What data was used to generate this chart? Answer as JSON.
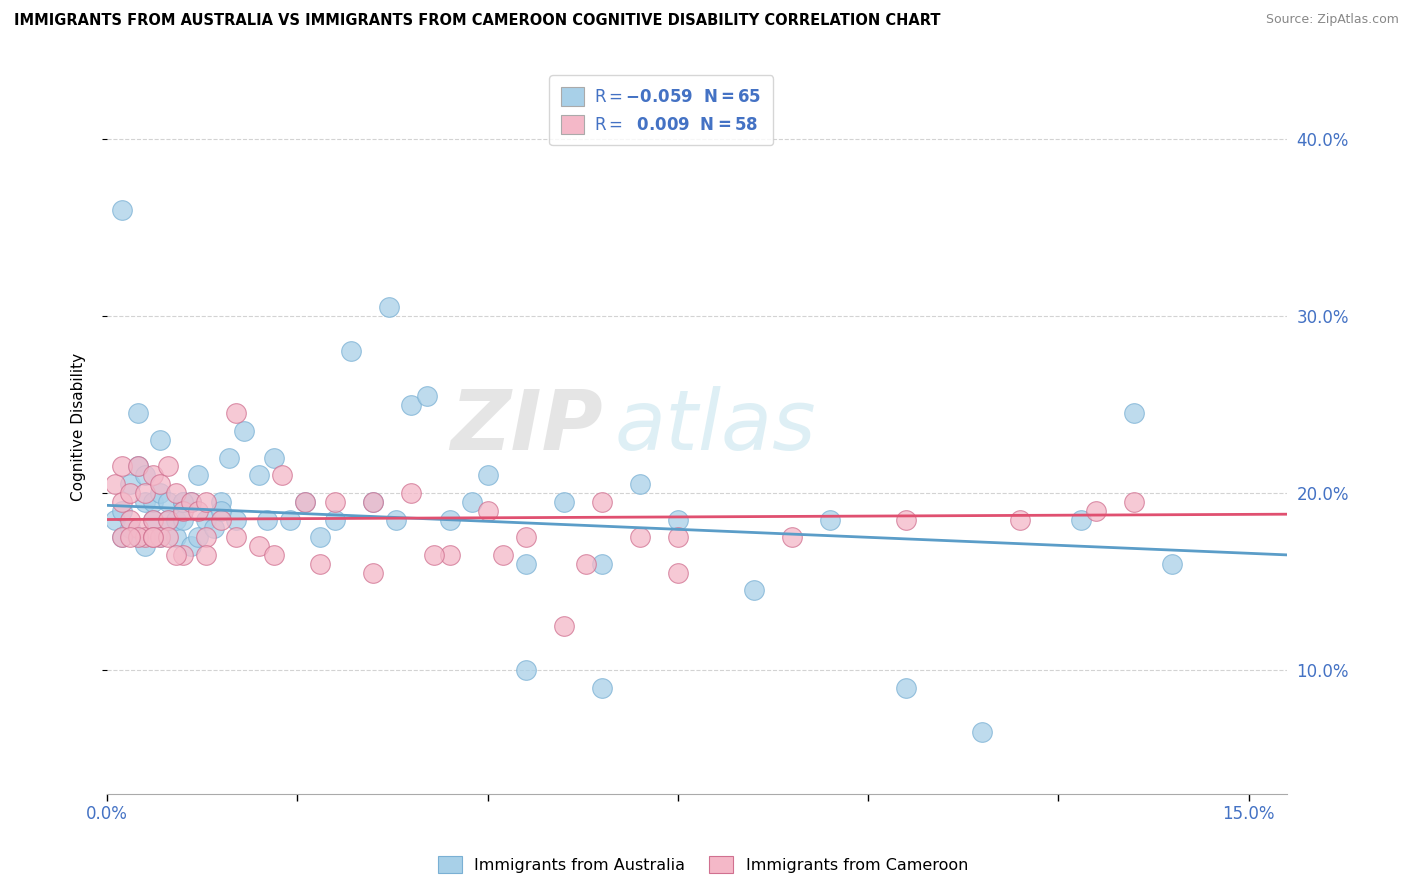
{
  "title": "IMMIGRANTS FROM AUSTRALIA VS IMMIGRANTS FROM CAMEROON COGNITIVE DISABILITY CORRELATION CHART",
  "source": "Source: ZipAtlas.com",
  "ylabel": "Cognitive Disability",
  "xlim": [
    0.0,
    0.155
  ],
  "ylim": [
    0.03,
    0.445
  ],
  "yticks": [
    0.1,
    0.2,
    0.3,
    0.4
  ],
  "ytick_labels": [
    "10.0%",
    "20.0%",
    "30.0%",
    "40.0%"
  ],
  "xticks": [
    0.0,
    0.025,
    0.05,
    0.075,
    0.1,
    0.125,
    0.15
  ],
  "xtick_labels": [
    "0.0%",
    "",
    "",
    "",
    "",
    "",
    "15.0%"
  ],
  "color_australia": "#a8d0e8",
  "color_cameroon": "#f4b8c8",
  "edge_australia": "#7ab0d4",
  "edge_cameroon": "#d07090",
  "trendline_australia": "#5b9dc8",
  "trendline_cameroon": "#e05070",
  "background_color": "#ffffff",
  "watermark_zip": "ZIP",
  "watermark_atlas": "atlas",
  "aus_x": [
    0.001,
    0.002,
    0.002,
    0.003,
    0.003,
    0.004,
    0.004,
    0.005,
    0.005,
    0.005,
    0.006,
    0.006,
    0.007,
    0.007,
    0.008,
    0.008,
    0.009,
    0.009,
    0.01,
    0.01,
    0.011,
    0.011,
    0.012,
    0.012,
    0.013,
    0.014,
    0.015,
    0.016,
    0.017,
    0.018,
    0.02,
    0.021,
    0.022,
    0.024,
    0.026,
    0.028,
    0.03,
    0.032,
    0.035,
    0.037,
    0.04,
    0.042,
    0.045,
    0.05,
    0.055,
    0.06,
    0.065,
    0.07,
    0.038,
    0.048,
    0.055,
    0.065,
    0.075,
    0.085,
    0.095,
    0.105,
    0.115,
    0.128,
    0.135,
    0.14,
    0.002,
    0.004,
    0.007,
    0.01,
    0.015
  ],
  "aus_y": [
    0.185,
    0.19,
    0.175,
    0.205,
    0.18,
    0.215,
    0.175,
    0.195,
    0.17,
    0.21,
    0.185,
    0.195,
    0.175,
    0.2,
    0.185,
    0.195,
    0.175,
    0.185,
    0.185,
    0.195,
    0.17,
    0.195,
    0.175,
    0.21,
    0.185,
    0.18,
    0.195,
    0.22,
    0.185,
    0.235,
    0.21,
    0.185,
    0.22,
    0.185,
    0.195,
    0.175,
    0.185,
    0.28,
    0.195,
    0.305,
    0.25,
    0.255,
    0.185,
    0.21,
    0.16,
    0.195,
    0.16,
    0.205,
    0.185,
    0.195,
    0.1,
    0.09,
    0.185,
    0.145,
    0.185,
    0.09,
    0.065,
    0.185,
    0.245,
    0.16,
    0.36,
    0.245,
    0.23,
    0.195,
    0.19
  ],
  "cam_x": [
    0.001,
    0.002,
    0.002,
    0.003,
    0.003,
    0.004,
    0.004,
    0.005,
    0.005,
    0.006,
    0.006,
    0.007,
    0.007,
    0.008,
    0.008,
    0.009,
    0.01,
    0.011,
    0.012,
    0.013,
    0.015,
    0.017,
    0.02,
    0.023,
    0.026,
    0.03,
    0.035,
    0.04,
    0.045,
    0.05,
    0.055,
    0.06,
    0.065,
    0.07,
    0.075,
    0.002,
    0.004,
    0.006,
    0.008,
    0.01,
    0.013,
    0.017,
    0.022,
    0.028,
    0.035,
    0.043,
    0.052,
    0.063,
    0.075,
    0.09,
    0.105,
    0.12,
    0.135,
    0.003,
    0.006,
    0.009,
    0.013,
    0.13
  ],
  "cam_y": [
    0.205,
    0.215,
    0.195,
    0.2,
    0.185,
    0.215,
    0.18,
    0.2,
    0.175,
    0.21,
    0.185,
    0.205,
    0.175,
    0.215,
    0.185,
    0.2,
    0.19,
    0.195,
    0.19,
    0.195,
    0.185,
    0.245,
    0.17,
    0.21,
    0.195,
    0.195,
    0.195,
    0.2,
    0.165,
    0.19,
    0.175,
    0.125,
    0.195,
    0.175,
    0.155,
    0.175,
    0.175,
    0.175,
    0.175,
    0.165,
    0.175,
    0.175,
    0.165,
    0.16,
    0.155,
    0.165,
    0.165,
    0.16,
    0.175,
    0.175,
    0.185,
    0.185,
    0.195,
    0.175,
    0.175,
    0.165,
    0.165,
    0.19
  ],
  "trend_aus_x0": 0.0,
  "trend_aus_y0": 0.193,
  "trend_aus_x1": 0.155,
  "trend_aus_y1": 0.165,
  "trend_cam_x0": 0.0,
  "trend_cam_y0": 0.185,
  "trend_cam_x1": 0.155,
  "trend_cam_y1": 0.188
}
